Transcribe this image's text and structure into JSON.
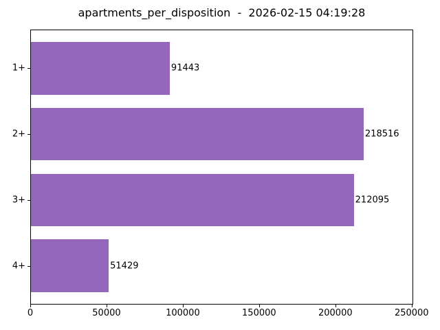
{
  "figure": {
    "title": "apartments_per_disposition  -  2026-02-15 04:19:28"
  },
  "chart_data": {
    "type": "bar",
    "orientation": "horizontal",
    "title": "apartments_per_disposition  -  2026-02-15 04:19:28",
    "categories": [
      "1+",
      "2+",
      "3+",
      "4+"
    ],
    "values": [
      91443,
      218516,
      212095,
      51429
    ],
    "bar_labels": [
      "91443",
      "218516",
      "212095",
      "51429"
    ],
    "xlabel": "",
    "ylabel": "",
    "xlim": [
      0,
      251000
    ],
    "xticks": [
      0,
      50000,
      100000,
      150000,
      200000,
      250000
    ],
    "xtick_labels": [
      "0",
      "50000",
      "100000",
      "150000",
      "200000",
      "250000"
    ],
    "grid": false,
    "legend": null,
    "bar_color": "#9467bd",
    "background_color": "#ffffff",
    "text_color": "#000000"
  }
}
